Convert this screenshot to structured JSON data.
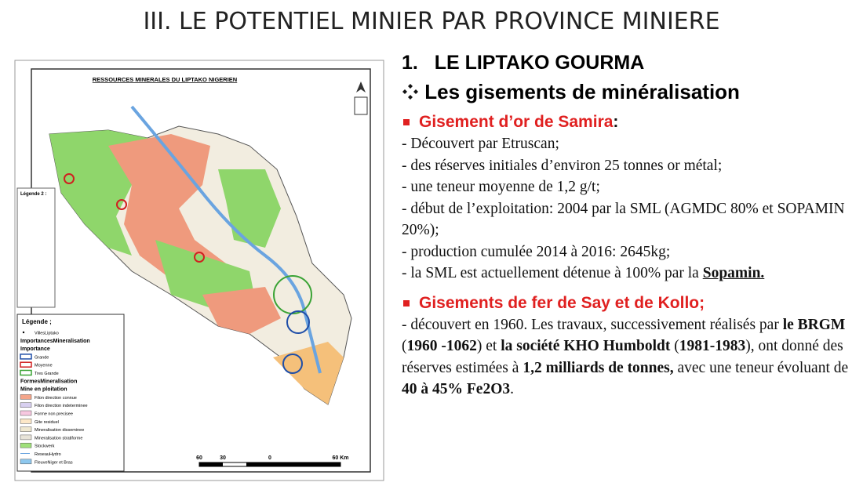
{
  "title": "III. LE POTENTIEL MINIER PAR PROVINCE MINIERE",
  "map": {
    "title": "RESSOURCES MINERALES DU LIPTAKO NIGERIEN",
    "legend2_title": "Légende 2 :",
    "legend_title": "Légende ;",
    "legend": [
      {
        "label": "VillesLiptako",
        "swatch": "dot"
      },
      {
        "label": "ImportancesMineralisation",
        "bold": true
      },
      {
        "label": "Importance",
        "bold": true
      },
      {
        "label": "Grande",
        "swatch": "#1f4ea8"
      },
      {
        "label": "Moyenne",
        "swatch": "#d02020"
      },
      {
        "label": "Tres Grande",
        "swatch": "#3aa335"
      },
      {
        "label": "FormesMineralisation",
        "bold": true
      },
      {
        "label": "Mine en ploitation",
        "bold": true
      },
      {
        "label": "Filon direction connue",
        "swatch": "#f4a58a"
      },
      {
        "label": "Filon direction indeterminee",
        "swatch": "#d8d0f0"
      },
      {
        "label": "Forme non precisee",
        "swatch": "#f7c8e0"
      },
      {
        "label": "Gite residuel",
        "swatch": "#fde8c8"
      },
      {
        "label": "Mineralisation disseminee",
        "swatch": "#efe8d0"
      },
      {
        "label": "Mineralisation stratiforme",
        "swatch": "#e8e4d8"
      },
      {
        "label": "Stockwerk",
        "swatch": "#9fe07a"
      },
      {
        "label": "ReseauHydro",
        "swatch": "line"
      },
      {
        "label": "FleuveNiger et Bras",
        "swatch": "#8ec8ee"
      }
    ],
    "scale": [
      "60",
      "30",
      "0",
      "60 Km"
    ]
  },
  "section": {
    "number": "1.",
    "title": "LE LIPTAKO GOURMA"
  },
  "subtitle": "Les gisements de minéralisation",
  "blocks": [
    {
      "heading": [
        {
          "text": "Gisement d’or de Samira",
          "red": true
        },
        {
          "text": ":"
        }
      ],
      "paragraphs": [
        [
          {
            "text": "- Découvert par Etruscan;"
          }
        ],
        [
          {
            "text": "- des réserves initiales d’environ 25 tonnes or métal;"
          }
        ],
        [
          {
            "text": "- une teneur moyenne de 1,2 g/t;"
          }
        ],
        [
          {
            "text": "- début de l’exploitation: 2004 par la SML (AGMDC 80% et SOPAMIN 20%);"
          }
        ],
        [
          {
            "text": "-  production cumulée 2014 à 2016: 2645kg;"
          }
        ],
        [
          {
            "text": "-  la SML est actuellement détenue à 100% par la "
          },
          {
            "text": "Sopamin.",
            "bold": true,
            "underline": true
          }
        ]
      ]
    },
    {
      "heading": [
        {
          "text": "Gisements de fer de Say et de Kollo;",
          "red": true
        }
      ],
      "paragraphs": [
        [
          {
            "text": "-  découvert en 1960. Les travaux, successivement réalisés par "
          },
          {
            "text": "le BRGM",
            "bold": true
          },
          {
            "text": " ("
          },
          {
            "text": "1960 -1062",
            "bold": true
          },
          {
            "text": ") et "
          },
          {
            "text": "la société KHO Humboldt",
            "bold": true
          },
          {
            "text": " ("
          },
          {
            "text": "1981-1983",
            "bold": true
          },
          {
            "text": "), ont donné des réserves estimées à  "
          },
          {
            "text": "1,2 milliards de tonnes,",
            "bold": true
          },
          {
            "text": " avec une teneur évoluant de "
          },
          {
            "text": "40 à 45% Fe2O3",
            "bold": true
          },
          {
            "text": "."
          }
        ]
      ]
    }
  ]
}
